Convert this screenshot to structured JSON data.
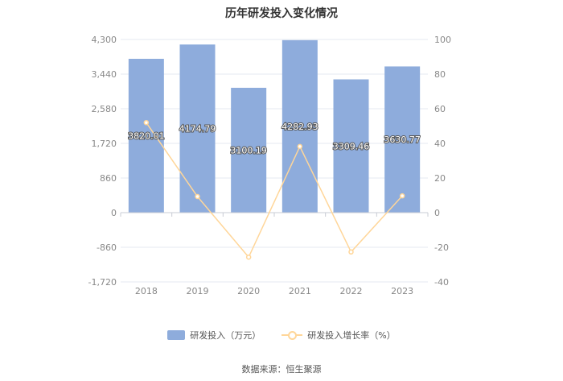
{
  "title": "历年研发投入变化情况",
  "source": "数据来源：恒生聚源",
  "colors": {
    "bar": "#8eacdc",
    "line": "#ffd699",
    "grid": "#e6e9f0",
    "axis_text": "#888888"
  },
  "chart_data": {
    "type": "bar",
    "title": "历年研发投入变化情况",
    "categories": [
      "2018",
      "2019",
      "2020",
      "2021",
      "2022",
      "2023"
    ],
    "series": [
      {
        "name": "研发投入（万元）",
        "type": "bar",
        "axis": "left",
        "values": [
          3820.01,
          4174.79,
          3100.19,
          4282.93,
          3309.46,
          3630.77
        ],
        "labels": [
          "3820.01",
          "4174.79",
          "3100.19",
          "4282.93",
          "3309.46",
          "3630.77"
        ]
      },
      {
        "name": "研发投入增长率（%）",
        "type": "line",
        "axis": "right",
        "values": [
          52.0,
          9.3,
          -25.7,
          38.2,
          -22.7,
          9.7
        ]
      }
    ],
    "y_left": {
      "min": -1720,
      "max": 4300,
      "ticks": [
        4300,
        3440,
        2580,
        1720,
        860,
        0,
        -860,
        -1720
      ],
      "tick_labels": [
        "4,300",
        "3,440",
        "2,580",
        "1,720",
        "860",
        "0",
        "-860",
        "-1,720"
      ]
    },
    "y_right": {
      "min": -40,
      "max": 100,
      "ticks": [
        100,
        80,
        60,
        40,
        20,
        0,
        -20,
        -40
      ],
      "tick_labels": [
        "100",
        "80",
        "60",
        "40",
        "20",
        "0",
        "-20",
        "-40"
      ]
    },
    "grid": true,
    "legend_position": "bottom"
  }
}
